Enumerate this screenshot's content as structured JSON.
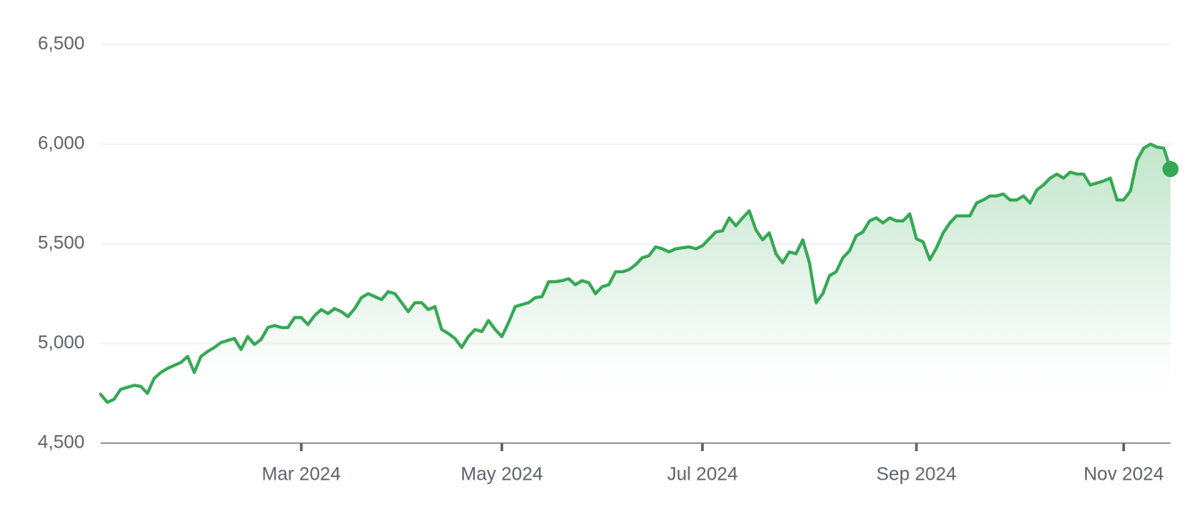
{
  "chart_data": {
    "type": "line",
    "categories": [
      null,
      null,
      null,
      null,
      null,
      null,
      null,
      null,
      null,
      null,
      null,
      null,
      null,
      null,
      null,
      null,
      null,
      null,
      null,
      null,
      null,
      null,
      null,
      null,
      null,
      null,
      null,
      null,
      null,
      null,
      "Mar 2024",
      null,
      null,
      null,
      null,
      null,
      null,
      null,
      null,
      null,
      null,
      null,
      null,
      null,
      null,
      null,
      null,
      null,
      null,
      null,
      null,
      null,
      null,
      null,
      null,
      null,
      null,
      null,
      null,
      null,
      "May 2024",
      null,
      null,
      null,
      null,
      null,
      null,
      null,
      null,
      null,
      null,
      null,
      null,
      null,
      null,
      null,
      null,
      null,
      null,
      null,
      null,
      null,
      null,
      null,
      null,
      null,
      null,
      null,
      null,
      null,
      "Jul 2024",
      null,
      null,
      null,
      null,
      null,
      null,
      null,
      null,
      null,
      null,
      null,
      null,
      null,
      null,
      null,
      null,
      null,
      null,
      null,
      null,
      null,
      null,
      null,
      null,
      null,
      null,
      null,
      null,
      null,
      null,
      null,
      "Sep 2024",
      null,
      null,
      null,
      null,
      null,
      null,
      null,
      null,
      null,
      null,
      null,
      null,
      null,
      null,
      null,
      null,
      null,
      null,
      null,
      null,
      null,
      null,
      null,
      null,
      null,
      null,
      null,
      null,
      null,
      null,
      "Nov 2024",
      null,
      null,
      null,
      null,
      null,
      null,
      null
    ],
    "values": [
      4745,
      4705,
      4720,
      4770,
      4780,
      4790,
      4785,
      4750,
      4825,
      4855,
      4875,
      4890,
      4905,
      4935,
      4855,
      4935,
      4960,
      4980,
      5005,
      5015,
      5025,
      4970,
      5035,
      4995,
      5020,
      5080,
      5090,
      5080,
      5080,
      5130,
      5130,
      5095,
      5140,
      5170,
      5150,
      5175,
      5160,
      5135,
      5175,
      5230,
      5250,
      5235,
      5220,
      5260,
      5250,
      5205,
      5160,
      5205,
      5205,
      5170,
      5185,
      5070,
      5050,
      5025,
      4980,
      5035,
      5070,
      5060,
      5115,
      5070,
      5035,
      5105,
      5185,
      5195,
      5205,
      5230,
      5235,
      5310,
      5310,
      5315,
      5325,
      5295,
      5315,
      5305,
      5250,
      5285,
      5295,
      5360,
      5360,
      5370,
      5395,
      5430,
      5440,
      5485,
      5475,
      5460,
      5475,
      5480,
      5485,
      5475,
      5490,
      5525,
      5560,
      5565,
      5630,
      5590,
      5630,
      5665,
      5570,
      5520,
      5555,
      5450,
      5405,
      5460,
      5450,
      5520,
      5405,
      5205,
      5250,
      5340,
      5360,
      5430,
      5465,
      5540,
      5560,
      5615,
      5630,
      5605,
      5630,
      5615,
      5615,
      5650,
      5525,
      5510,
      5420,
      5480,
      5555,
      5605,
      5640,
      5640,
      5640,
      5705,
      5720,
      5740,
      5740,
      5750,
      5720,
      5720,
      5740,
      5705,
      5770,
      5795,
      5830,
      5850,
      5830,
      5860,
      5850,
      5850,
      5795,
      5805,
      5815,
      5830,
      5720,
      5720,
      5765,
      5920,
      5980,
      6000,
      5985,
      5980,
      5875
    ],
    "color": "#34a853",
    "ylim": [
      4500,
      6500
    ],
    "yticks": [
      {
        "value": 4500,
        "label": "4,500"
      },
      {
        "value": 5000,
        "label": "5,000"
      },
      {
        "value": 5500,
        "label": "5,500"
      },
      {
        "value": 6000,
        "label": "6,000"
      },
      {
        "value": 6500,
        "label": "6,500"
      }
    ],
    "grid": true
  }
}
